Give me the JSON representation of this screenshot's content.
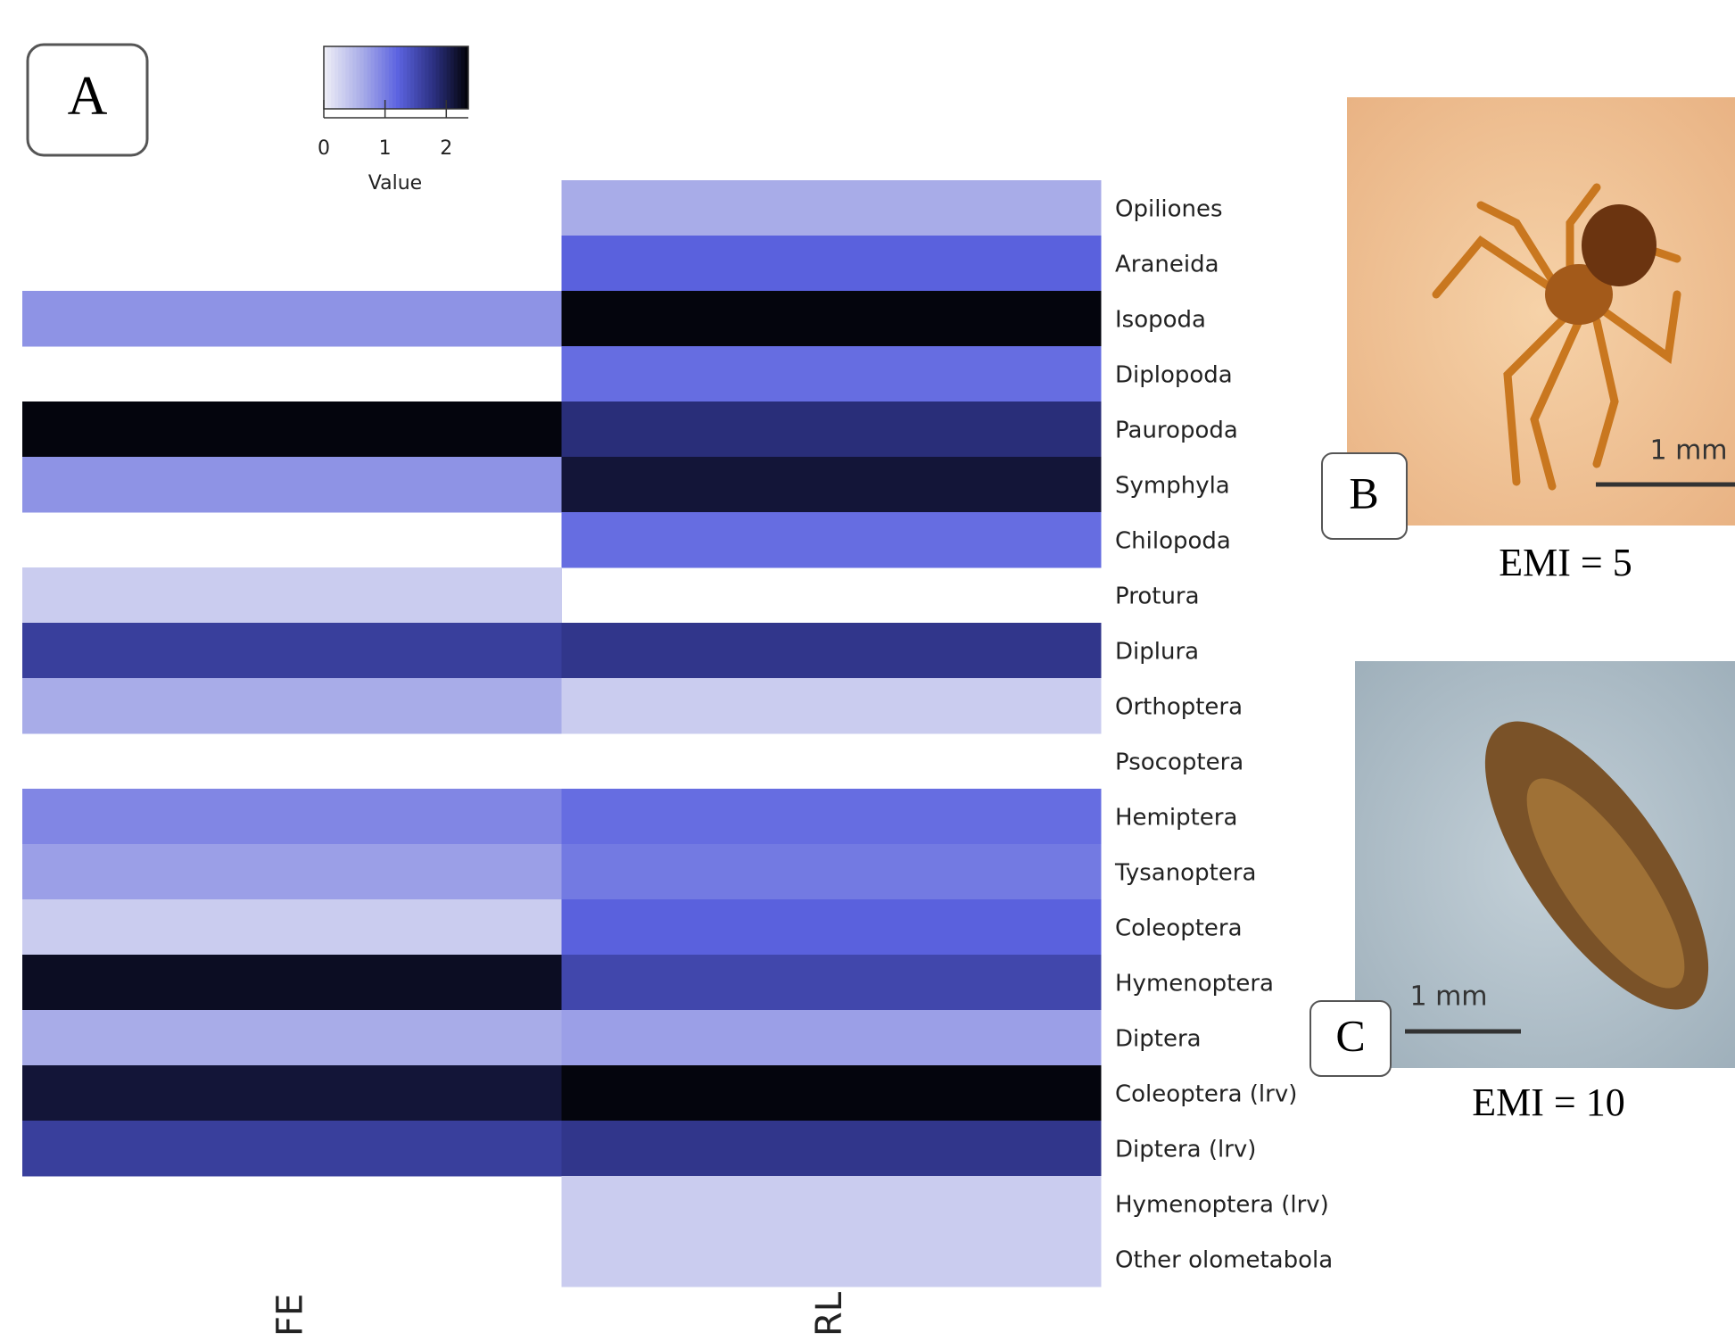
{
  "chart_data": {
    "type": "heatmap",
    "panel_label": "A",
    "columns": [
      "FE",
      "RL"
    ],
    "rows": [
      "Opiliones",
      "Araneida",
      "Isopoda",
      "Diplopoda",
      "Pauropoda",
      "Symphyla",
      "Chilopoda",
      "Protura",
      "Diplura",
      "Orthoptera",
      "Psocoptera",
      "Hemiptera",
      "Tysanoptera",
      "Coleoptera",
      "Hymenoptera",
      "Diptera",
      "Coleoptera (lrv)",
      "Diptera (lrv)",
      "Hymenoptera (lrv)",
      "Other olometabola"
    ],
    "values": [
      [
        null,
        0.6
      ],
      [
        null,
        1.2
      ],
      [
        0.8,
        2.3
      ],
      [
        null,
        1.1
      ],
      [
        2.3,
        1.8
      ],
      [
        0.8,
        2.1
      ],
      [
        null,
        1.1
      ],
      [
        0.3,
        null
      ],
      [
        1.6,
        1.7
      ],
      [
        0.6,
        0.3
      ],
      [
        null,
        null
      ],
      [
        0.9,
        1.1
      ],
      [
        0.7,
        1.0
      ],
      [
        0.3,
        1.2
      ],
      [
        2.2,
        1.5
      ],
      [
        0.6,
        0.7
      ],
      [
        2.1,
        2.3
      ],
      [
        1.6,
        1.7
      ],
      [
        null,
        0.3
      ],
      [
        null,
        0.3
      ]
    ],
    "colors": [
      "#ececf6",
      "#a9ade8",
      "#5c63e0",
      "#2b3080",
      "#000000"
    ],
    "zlim": [
      0,
      2.36
    ],
    "zticks": [
      0,
      1,
      2
    ],
    "colorbar_title": "Value"
  },
  "photos": [
    {
      "label": "B",
      "scale_bar": "1 mm",
      "caption": "EMI = 5"
    },
    {
      "label": "C",
      "scale_bar": "1 mm",
      "caption": "EMI = 10"
    }
  ]
}
